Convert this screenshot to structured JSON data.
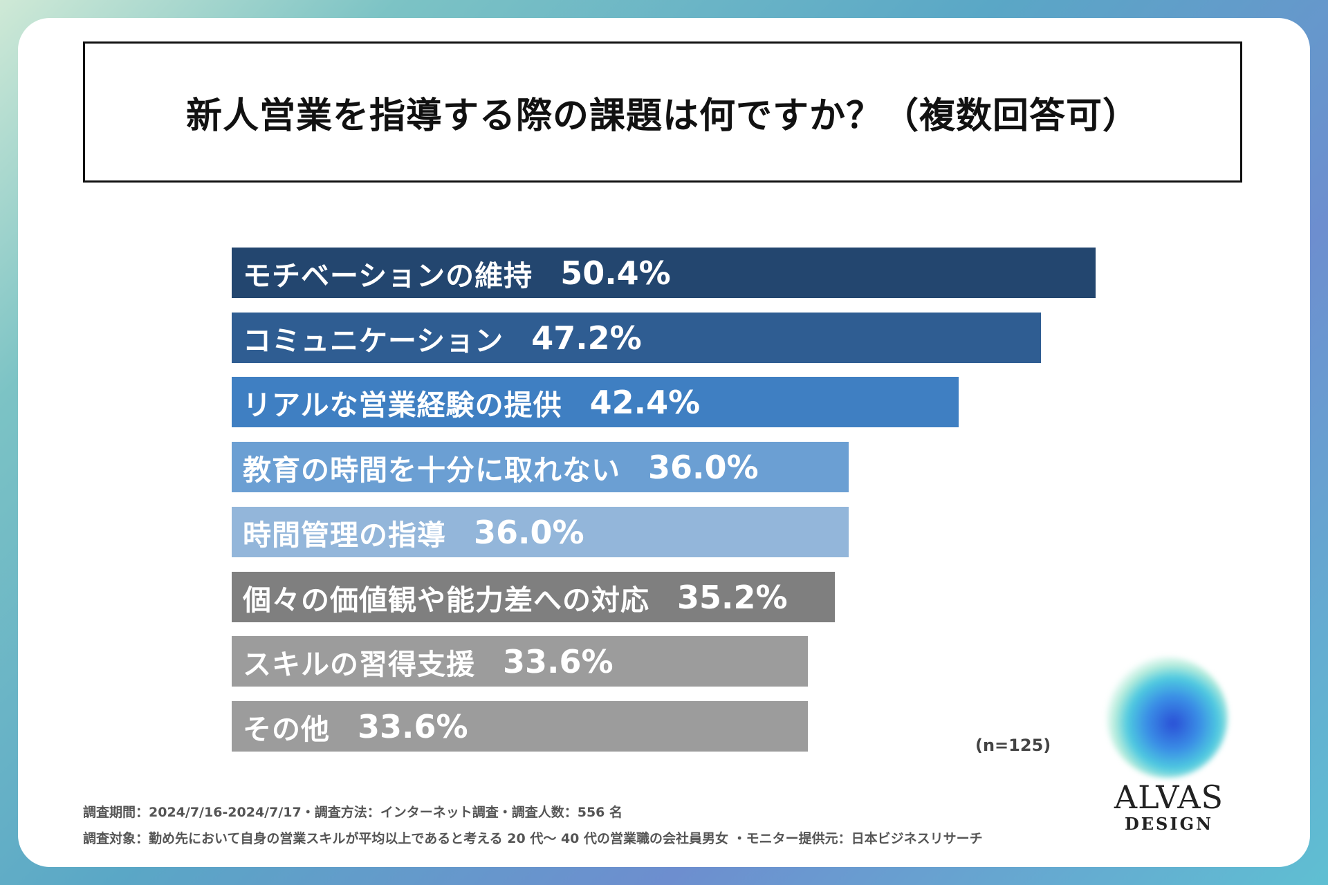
{
  "chart_data": {
    "type": "bar",
    "orientation": "horizontal",
    "title": "新人営業を指導する際の課題は何ですか？（複数回答可）",
    "categories": [
      "モチベーションの維持",
      "コミュニケーション",
      "リアルな営業経験の提供",
      "教育の時間を十分に取れない",
      "時間管理の指導",
      "個々の価値観や能力差への対応",
      "スキルの習得支援",
      "その他"
    ],
    "values": [
      50.4,
      47.2,
      42.4,
      36.0,
      36.0,
      35.2,
      33.6,
      33.6
    ],
    "value_labels": [
      "50.4%",
      "47.2%",
      "42.4%",
      "36.0%",
      "36.0%",
      "35.2%",
      "33.6%",
      "33.6%"
    ],
    "colors": [
      "#23466f",
      "#2f5d92",
      "#3f7fc2",
      "#6b9fd3",
      "#93b6da",
      "#7f7f7f",
      "#9c9c9c",
      "#9c9c9c"
    ],
    "xlim": [
      0,
      50.4
    ],
    "sample_note": "(n=125)"
  },
  "footer": {
    "line1": "調査期間：2024/7/16-2024/7/17・調査方法：インターネット調査・調査人数：556 名",
    "line2": "調査対象：勤め先において自身の営業スキルが平均以上であると考える 20 代〜 40 代の営業職の会社員男女 ・モニター提供元：日本ビジネスリサーチ"
  },
  "logo": {
    "name": "ALVAS",
    "sub": "DESIGN"
  }
}
